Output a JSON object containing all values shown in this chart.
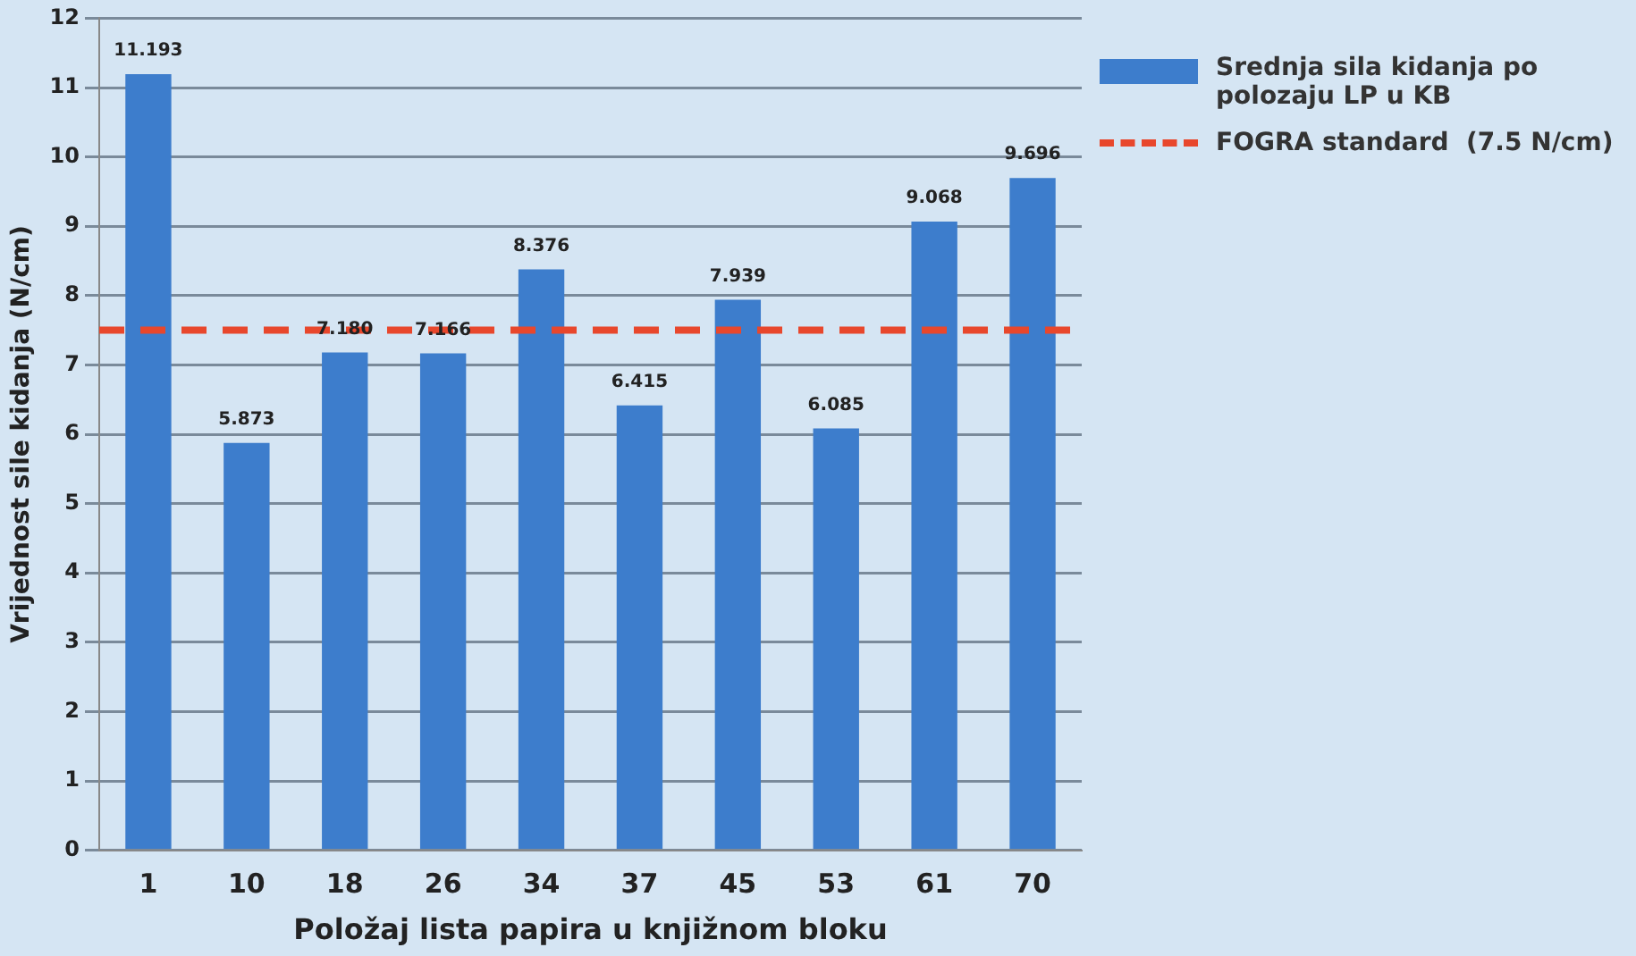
{
  "chart_data": {
    "type": "bar",
    "xlabel": "Položaj lista papira u knjižnom bloku",
    "ylabel": "Vrijednost sile kidanja (N/cm)",
    "categories": [
      "1",
      "10",
      "18",
      "26",
      "34",
      "37",
      "45",
      "53",
      "61",
      "70"
    ],
    "series": [
      {
        "name": "Srednja sila kidanja po polozaju LP u KB",
        "color": "#3d7dcc",
        "values": [
          11.193,
          5.873,
          7.18,
          7.166,
          8.376,
          6.415,
          7.939,
          6.085,
          9.068,
          9.696
        ]
      }
    ],
    "value_labels": [
      "11.193",
      "5.873",
      "7.180",
      "7.166",
      "8.376",
      "6.415",
      "7.939",
      "6.085",
      "9.068",
      "9.696"
    ],
    "ylim": [
      0,
      12
    ],
    "yticks": [
      0,
      1,
      2,
      3,
      4,
      5,
      6,
      7,
      8,
      9,
      10,
      11,
      12
    ],
    "grid": "y",
    "legend": "top right",
    "ref_lines": [
      {
        "axis": "y",
        "value": 7.5,
        "label": "FOGRA standard  (7.5 N/cm)",
        "color": "#e8472c",
        "line_style": "dashed"
      }
    ]
  }
}
